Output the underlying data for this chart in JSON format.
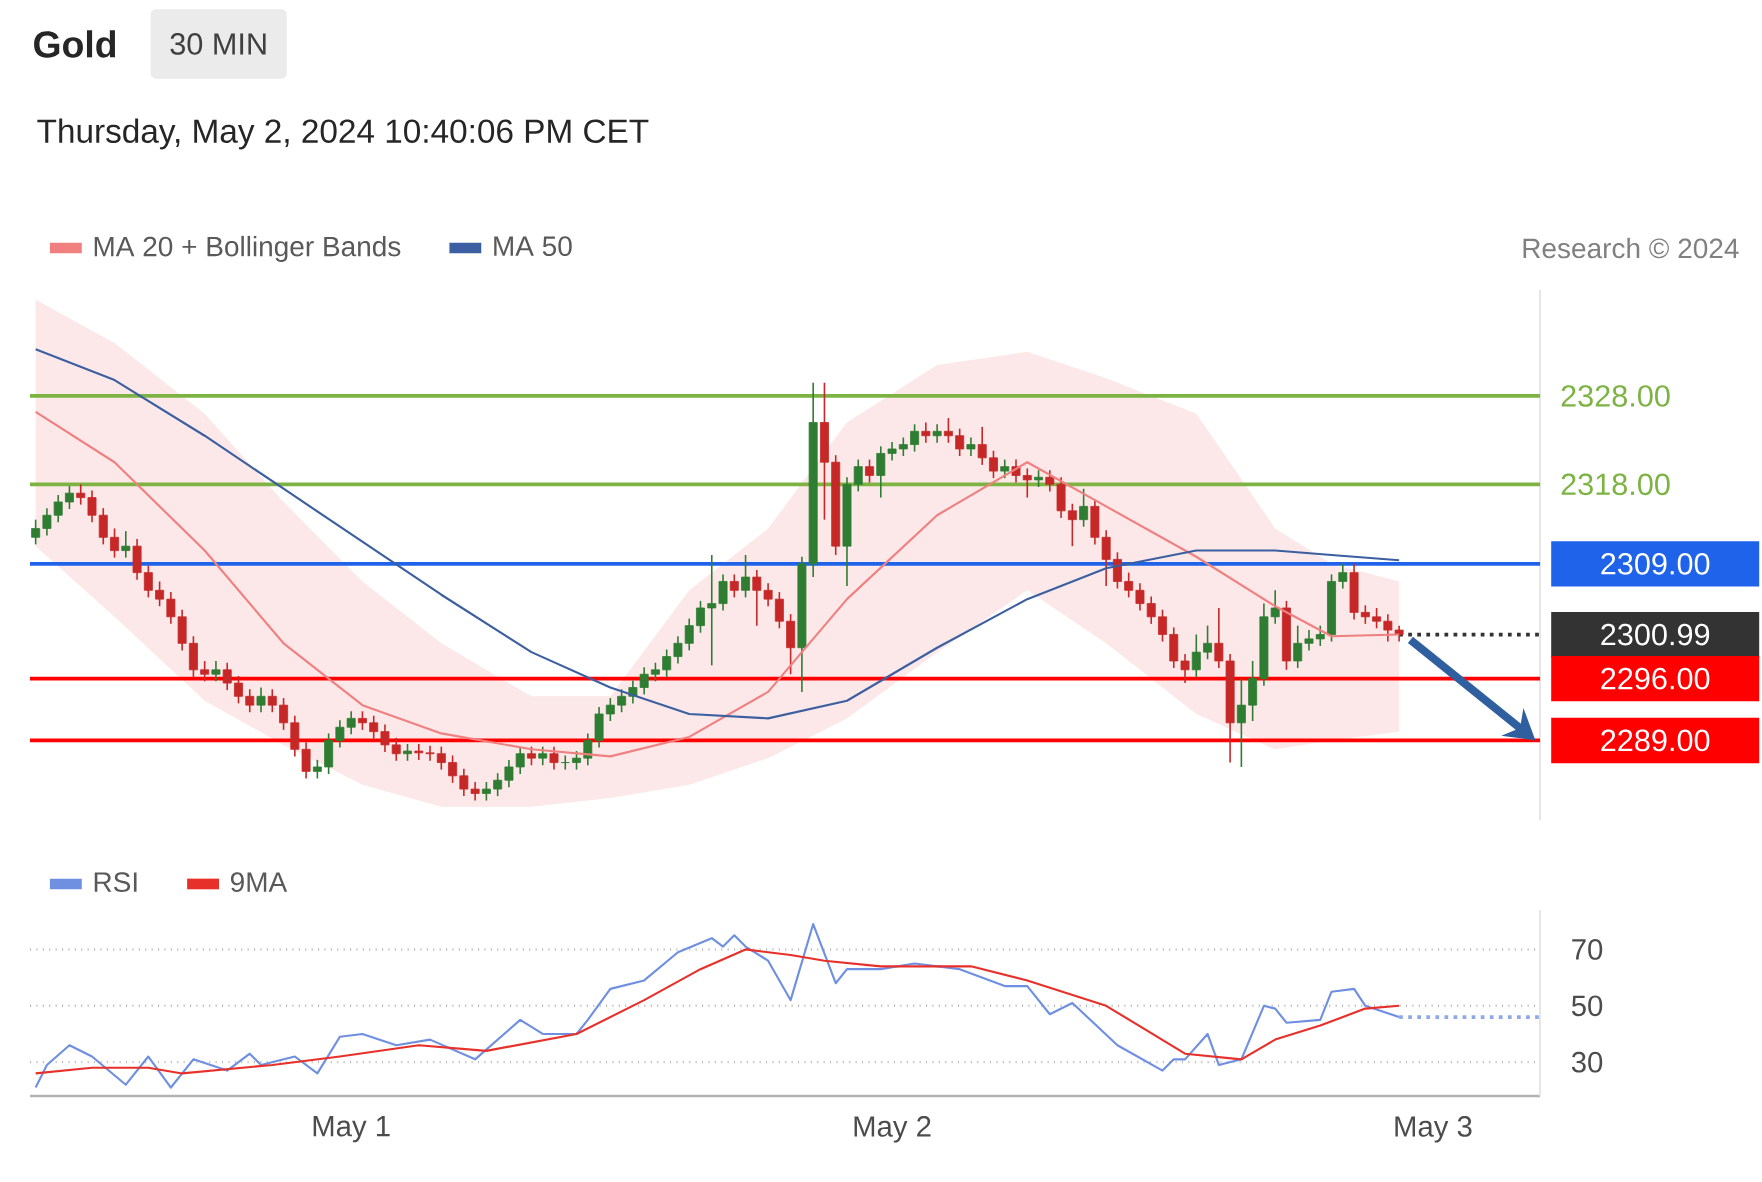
{
  "chart_data": [
    {
      "type": "candlestick",
      "title": "Gold",
      "subtitle": "30 MIN",
      "annotations": [
        "Thursday, May 2, 2024 10:40:06 PM CET",
        "Research © 2024"
      ],
      "legend": "top left",
      "xlim": [
        "2024-04-30T09:45",
        "2024-05-03T04:45"
      ],
      "ylim": [
        2280,
        2340
      ],
      "x": [
        "2024-04-30T10:00",
        "2024-04-30T10:30",
        "2024-04-30T11:00",
        "2024-04-30T11:30",
        "2024-04-30T12:00",
        "2024-04-30T12:30",
        "2024-04-30T13:00",
        "2024-04-30T13:30",
        "2024-04-30T14:00",
        "2024-04-30T14:30",
        "2024-04-30T15:00",
        "2024-04-30T15:30",
        "2024-04-30T16:00",
        "2024-04-30T16:30",
        "2024-04-30T17:00",
        "2024-04-30T17:30",
        "2024-04-30T18:00",
        "2024-04-30T18:30",
        "2024-04-30T19:00",
        "2024-04-30T19:30",
        "2024-04-30T20:00",
        "2024-04-30T20:30",
        "2024-04-30T21:00",
        "2024-04-30T21:30",
        "2024-04-30T22:00",
        "2024-04-30T22:30",
        "2024-04-30T23:00",
        "2024-04-30T23:30",
        "2024-05-01T00:00",
        "2024-05-01T00:30",
        "2024-05-01T01:00",
        "2024-05-01T01:30",
        "2024-05-01T02:00",
        "2024-05-01T02:30",
        "2024-05-01T03:00",
        "2024-05-01T03:30",
        "2024-05-01T04:00",
        "2024-05-01T04:30",
        "2024-05-01T05:00",
        "2024-05-01T05:30",
        "2024-05-01T06:00",
        "2024-05-01T06:30",
        "2024-05-01T07:00",
        "2024-05-01T07:30",
        "2024-05-01T08:00",
        "2024-05-01T08:30",
        "2024-05-01T09:00",
        "2024-05-01T09:30",
        "2024-05-01T10:00",
        "2024-05-01T10:30",
        "2024-05-01T11:00",
        "2024-05-01T11:30",
        "2024-05-01T12:00",
        "2024-05-01T12:30",
        "2024-05-01T13:00",
        "2024-05-01T13:30",
        "2024-05-01T14:00",
        "2024-05-01T14:30",
        "2024-05-01T15:00",
        "2024-05-01T15:30",
        "2024-05-01T16:00",
        "2024-05-01T16:30",
        "2024-05-01T17:00",
        "2024-05-01T17:30",
        "2024-05-01T18:00",
        "2024-05-01T18:30",
        "2024-05-01T19:00",
        "2024-05-01T19:30",
        "2024-05-01T20:00",
        "2024-05-01T20:30",
        "2024-05-01T21:00",
        "2024-05-01T21:30",
        "2024-05-01T22:00",
        "2024-05-01T22:30",
        "2024-05-01T23:00",
        "2024-05-01T23:30",
        "2024-05-02T00:00",
        "2024-05-02T00:30",
        "2024-05-02T01:00",
        "2024-05-02T01:30",
        "2024-05-02T02:00",
        "2024-05-02T02:30",
        "2024-05-02T03:00",
        "2024-05-02T03:30",
        "2024-05-02T04:00",
        "2024-05-02T04:30",
        "2024-05-02T05:00",
        "2024-05-02T05:30",
        "2024-05-02T06:00",
        "2024-05-02T06:30",
        "2024-05-02T07:00",
        "2024-05-02T07:30",
        "2024-05-02T08:00",
        "2024-05-02T08:30",
        "2024-05-02T09:00",
        "2024-05-02T09:30",
        "2024-05-02T10:00",
        "2024-05-02T10:30",
        "2024-05-02T11:00",
        "2024-05-02T11:30",
        "2024-05-02T12:00",
        "2024-05-02T12:30",
        "2024-05-02T13:00",
        "2024-05-02T13:30",
        "2024-05-02T14:00",
        "2024-05-02T14:30",
        "2024-05-02T15:00",
        "2024-05-02T15:30",
        "2024-05-02T16:00",
        "2024-05-02T16:30",
        "2024-05-02T17:00",
        "2024-05-02T17:30",
        "2024-05-02T18:00",
        "2024-05-02T18:30",
        "2024-05-02T19:00",
        "2024-05-02T19:30",
        "2024-05-02T20:00",
        "2024-05-02T20:30",
        "2024-05-02T21:00",
        "2024-05-02T21:30",
        "2024-05-02T22:00",
        "2024-05-02T22:30"
      ],
      "ohlc": [
        [
          2312,
          2314,
          2311.2,
          2313
        ],
        [
          2313,
          2315.3,
          2312.2,
          2314.5
        ],
        [
          2314.5,
          2316.8,
          2313.7,
          2316
        ],
        [
          2316,
          2317.8,
          2315.2,
          2317
        ],
        [
          2317,
          2318,
          2315.7,
          2316.5
        ],
        [
          2316.5,
          2317.3,
          2313.7,
          2314.5
        ],
        [
          2314.5,
          2315.3,
          2311.2,
          2312
        ],
        [
          2312,
          2313,
          2309.7,
          2310.5
        ],
        [
          2310.5,
          2312.7,
          2309.7,
          2311
        ],
        [
          2311,
          2311.8,
          2307.2,
          2308
        ],
        [
          2308,
          2308.8,
          2305.2,
          2306
        ],
        [
          2306,
          2307,
          2304.2,
          2305
        ],
        [
          2305,
          2305.8,
          2302.2,
          2303
        ],
        [
          2303,
          2303.8,
          2299.2,
          2300
        ],
        [
          2300,
          2300.8,
          2296.2,
          2297
        ],
        [
          2297,
          2298,
          2295.7,
          2296.5
        ],
        [
          2296.5,
          2298,
          2295.7,
          2297
        ],
        [
          2297,
          2297.8,
          2294.7,
          2295.5
        ],
        [
          2295.5,
          2296.3,
          2293.2,
          2294
        ],
        [
          2294,
          2294.8,
          2292.2,
          2293
        ],
        [
          2293,
          2295,
          2292.2,
          2294
        ],
        [
          2294,
          2294.8,
          2292.2,
          2293
        ],
        [
          2293,
          2293.8,
          2290.2,
          2291
        ],
        [
          2291,
          2291.8,
          2287.2,
          2288
        ],
        [
          2288,
          2288.8,
          2284.7,
          2285.5
        ],
        [
          2285.5,
          2286.8,
          2284.7,
          2286
        ],
        [
          2286,
          2289.8,
          2285.2,
          2289
        ],
        [
          2289,
          2291.3,
          2288.2,
          2290.5
        ],
        [
          2290.5,
          2292.3,
          2289.7,
          2291.5
        ],
        [
          2291.5,
          2292.3,
          2290.2,
          2291
        ],
        [
          2291,
          2291.8,
          2289.2,
          2290
        ],
        [
          2290,
          2290.8,
          2287.7,
          2288.5
        ],
        [
          2288.5,
          2289.3,
          2286.7,
          2287.5
        ],
        [
          2287.5,
          2288.6,
          2286.7,
          2287.8
        ],
        [
          2287.8,
          2288.6,
          2286.8,
          2287.6
        ],
        [
          2287.6,
          2288.4,
          2286.7,
          2287.5
        ],
        [
          2287.5,
          2288.3,
          2285.7,
          2286.5
        ],
        [
          2286.5,
          2287.3,
          2284.2,
          2285
        ],
        [
          2285,
          2285.8,
          2282.7,
          2283.5
        ],
        [
          2283.5,
          2284.3,
          2282.2,
          2283
        ],
        [
          2283,
          2284.3,
          2282.2,
          2283.5
        ],
        [
          2283.5,
          2285.3,
          2282.7,
          2284.5
        ],
        [
          2284.5,
          2286.8,
          2283.7,
          2286
        ],
        [
          2286,
          2288.3,
          2285.2,
          2287.5
        ],
        [
          2287.5,
          2288.3,
          2286.2,
          2287
        ],
        [
          2287,
          2288.3,
          2286.2,
          2287.5
        ],
        [
          2287.5,
          2288.3,
          2285.7,
          2286.5
        ],
        [
          2286.5,
          2287.3,
          2285.7,
          2286.5
        ],
        [
          2286.5,
          2287.8,
          2285.7,
          2287
        ],
        [
          2287,
          2289.8,
          2286.2,
          2289
        ],
        [
          2289,
          2292.8,
          2288.2,
          2292
        ],
        [
          2292,
          2293.8,
          2291.2,
          2293
        ],
        [
          2293,
          2294.8,
          2292.2,
          2294
        ],
        [
          2294,
          2295.8,
          2293.2,
          2295
        ],
        [
          2295,
          2297.3,
          2294.2,
          2296.5
        ],
        [
          2296.5,
          2297.8,
          2295.7,
          2297
        ],
        [
          2297,
          2299.3,
          2296.2,
          2298.5
        ],
        [
          2298.5,
          2300.8,
          2297.7,
          2300
        ],
        [
          2300,
          2302.8,
          2299.2,
          2302
        ],
        [
          2302,
          2304.8,
          2301.2,
          2304
        ],
        [
          2304,
          2310,
          2297.5,
          2304.5
        ],
        [
          2304.5,
          2307.8,
          2303.7,
          2307
        ],
        [
          2307,
          2307.8,
          2305.2,
          2306
        ],
        [
          2306,
          2310,
          2305.2,
          2307.5
        ],
        [
          2307.5,
          2308.3,
          2302,
          2306
        ],
        [
          2306,
          2306.8,
          2304.2,
          2305
        ],
        [
          2305,
          2305.8,
          2301.7,
          2302.5
        ],
        [
          2302.5,
          2303.3,
          2296.5,
          2299.5
        ],
        [
          2299.5,
          2309.8,
          2294.5,
          2309
        ],
        [
          2309,
          2329.5,
          2307.5,
          2325
        ],
        [
          2325,
          2329.5,
          2314,
          2320.5
        ],
        [
          2320.5,
          2321.3,
          2310,
          2311
        ],
        [
          2311,
          2318.8,
          2306.5,
          2318
        ],
        [
          2318,
          2320.8,
          2317.2,
          2320
        ],
        [
          2320,
          2320.8,
          2318.2,
          2319
        ],
        [
          2319,
          2322.3,
          2316.5,
          2321.5
        ],
        [
          2321.5,
          2322.8,
          2320.7,
          2322
        ],
        [
          2322,
          2323.3,
          2321.2,
          2322.5
        ],
        [
          2322.5,
          2324.8,
          2321.7,
          2324
        ],
        [
          2324,
          2325,
          2322.7,
          2323.5
        ],
        [
          2323.5,
          2324.8,
          2322.7,
          2324
        ],
        [
          2324,
          2325.5,
          2322.7,
          2323.5
        ],
        [
          2323.5,
          2324.3,
          2321.2,
          2322
        ],
        [
          2322,
          2323.3,
          2321.2,
          2322.5
        ],
        [
          2322.5,
          2324.5,
          2320.2,
          2321
        ],
        [
          2321,
          2321.8,
          2318.7,
          2319.5
        ],
        [
          2319.5,
          2320.8,
          2318.7,
          2320
        ],
        [
          2320,
          2320.8,
          2318.2,
          2319
        ],
        [
          2319,
          2319.8,
          2316.5,
          2318.5
        ],
        [
          2318.5,
          2319.6,
          2317.7,
          2318.8
        ],
        [
          2318.8,
          2319.6,
          2317.2,
          2318
        ],
        [
          2318,
          2318.8,
          2314.2,
          2315
        ],
        [
          2315,
          2315.8,
          2311,
          2314
        ],
        [
          2314,
          2317.5,
          2313.2,
          2315.5
        ],
        [
          2315.5,
          2316.3,
          2311.2,
          2312
        ],
        [
          2312,
          2312.8,
          2306.5,
          2309.5
        ],
        [
          2309.5,
          2310.3,
          2306.2,
          2307
        ],
        [
          2307,
          2308,
          2305.2,
          2306
        ],
        [
          2306,
          2306.8,
          2303.7,
          2304.5
        ],
        [
          2304.5,
          2305.3,
          2302.2,
          2303
        ],
        [
          2303,
          2303.8,
          2300.2,
          2301
        ],
        [
          2301,
          2301.8,
          2297.2,
          2298
        ],
        [
          2298,
          2298.8,
          2295.5,
          2297
        ],
        [
          2297,
          2301,
          2296.2,
          2299
        ],
        [
          2299,
          2302,
          2298.2,
          2300
        ],
        [
          2300,
          2304,
          2297.2,
          2298
        ],
        [
          2298,
          2298.8,
          2286.5,
          2291
        ],
        [
          2291,
          2296,
          2286,
          2293
        ],
        [
          2293,
          2298,
          2291.2,
          2296
        ],
        [
          2296,
          2304.5,
          2295.2,
          2303
        ],
        [
          2303,
          2306,
          2302.2,
          2304
        ],
        [
          2304,
          2304.8,
          2297,
          2298
        ],
        [
          2298,
          2302,
          2297.2,
          2300
        ],
        [
          2300,
          2301.5,
          2299.2,
          2300.5
        ],
        [
          2300.5,
          2302,
          2299.7,
          2301
        ],
        [
          2301,
          2307.8,
          2300.2,
          2307
        ],
        [
          2307,
          2309,
          2306.2,
          2308
        ],
        [
          2308,
          2309,
          2302.7,
          2303.5
        ],
        [
          2303.5,
          2304.3,
          2302.2,
          2303
        ],
        [
          2303,
          2304,
          2301.7,
          2302.5
        ],
        [
          2302.5,
          2303.3,
          2300.2,
          2301.5
        ],
        [
          2301.5,
          2302,
          2300.2,
          2300.99
        ]
      ],
      "series": [
        {
          "name": "MA 20 + Bollinger Bands",
          "type": "line",
          "color": "#f08080",
          "x": [
            "2024-04-30T10:00",
            "2024-04-30T13:30",
            "2024-04-30T17:30",
            "2024-04-30T21:00",
            "2024-05-01T00:30",
            "2024-05-01T04:00",
            "2024-05-01T08:00",
            "2024-05-01T11:30",
            "2024-05-01T15:00",
            "2024-05-01T18:30",
            "2024-05-01T22:00",
            "2024-05-02T02:00",
            "2024-05-02T06:00",
            "2024-05-02T09:30",
            "2024-05-02T13:30",
            "2024-05-02T17:00",
            "2024-05-02T19:30",
            "2024-05-02T22:30"
          ],
          "values": [
            2326.2,
            2320.5,
            2310.5,
            2300,
            2293,
            2289.8,
            2288,
            2287.2,
            2289.4,
            2294.5,
            2305,
            2314.5,
            2320.5,
            2315.5,
            2309.8,
            2304.2,
            2300.8,
            2301
          ],
          "lower": [
            2311,
            2303,
            2293.5,
            2288.5,
            2284,
            2281.5,
            2281.5,
            2282.5,
            2284,
            2287,
            2291.5,
            2299,
            2306,
            2300,
            2292,
            2288,
            2289,
            2290
          ],
          "upper": [
            2338.9,
            2334,
            2326,
            2316,
            2307,
            2300,
            2294,
            2294,
            2306,
            2313,
            2325,
            2331.5,
            2333,
            2330,
            2326,
            2313,
            2309,
            2307
          ]
        },
        {
          "name": "MA 50",
          "type": "line",
          "color": "#3b5fa0",
          "x": [
            "2024-04-30T10:00",
            "2024-04-30T13:30",
            "2024-04-30T17:30",
            "2024-04-30T21:00",
            "2024-05-01T00:30",
            "2024-05-01T04:00",
            "2024-05-01T08:00",
            "2024-05-01T11:30",
            "2024-05-01T15:00",
            "2024-05-01T18:30",
            "2024-05-01T22:00",
            "2024-05-02T02:00",
            "2024-05-02T06:00",
            "2024-05-02T09:30",
            "2024-05-02T13:30",
            "2024-05-02T17:00",
            "2024-05-02T19:30",
            "2024-05-02T22:30"
          ],
          "values": [
            2333.3,
            2329.8,
            2323.5,
            2317.5,
            2311.5,
            2305.5,
            2299,
            2295,
            2292,
            2291.5,
            2293.5,
            2299.5,
            2305,
            2308.5,
            2310.5,
            2310.5,
            2310,
            2309.4
          ]
        }
      ],
      "ref_lines": [
        {
          "axis": "y",
          "value": 2328,
          "label": "2328.00",
          "color": "#7cb342"
        },
        {
          "axis": "y",
          "value": 2318,
          "label": "2318.00",
          "color": "#7cb342"
        },
        {
          "axis": "y",
          "value": 2309,
          "label": "2309.00",
          "color": "#1e63e9"
        },
        {
          "axis": "y",
          "value": 2300.99,
          "label": "2300.99",
          "color": "#333333",
          "line_style": "dotted"
        },
        {
          "axis": "y",
          "value": 2296,
          "label": "2296.00",
          "color": "#ff0000"
        },
        {
          "axis": "y",
          "value": 2289,
          "label": "2289.00",
          "color": "#ff0000"
        }
      ]
    },
    {
      "type": "line",
      "legend": "top left",
      "grid": "y",
      "xlim": [
        "2024-04-30T09:45",
        "2024-05-03T04:45"
      ],
      "ylim": [
        18,
        84
      ],
      "yticks": [
        30,
        50,
        70
      ],
      "xticks": [
        {
          "value": "2024-05-01",
          "label": "May 1"
        },
        {
          "value": "2024-05-02",
          "label": "May 2"
        },
        {
          "value": "2024-05-03",
          "label": "May 3"
        }
      ],
      "series": [
        {
          "name": "RSI",
          "type": "line",
          "color": "#6f8fe0",
          "x": [
            "2024-04-30T10:00",
            "2024-04-30T10:30",
            "2024-04-30T11:30",
            "2024-04-30T12:30",
            "2024-04-30T14:00",
            "2024-04-30T15:00",
            "2024-04-30T16:00",
            "2024-04-30T17:00",
            "2024-04-30T18:30",
            "2024-04-30T19:30",
            "2024-04-30T20:00",
            "2024-04-30T21:30",
            "2024-04-30T22:30",
            "2024-04-30T23:30",
            "2024-05-01T00:30",
            "2024-05-01T02:00",
            "2024-05-01T03:30",
            "2024-05-01T05:30",
            "2024-05-01T07:30",
            "2024-05-01T08:30",
            "2024-05-01T10:00",
            "2024-05-01T10:30",
            "2024-05-01T11:30",
            "2024-05-01T13:00",
            "2024-05-01T14:30",
            "2024-05-01T16:00",
            "2024-05-01T16:30",
            "2024-05-01T17:00",
            "2024-05-01T17:30",
            "2024-05-01T18:30",
            "2024-05-01T19:30",
            "2024-05-01T20:30",
            "2024-05-01T21:30",
            "2024-05-01T22:00",
            "2024-05-01T23:30",
            "2024-05-02T01:00",
            "2024-05-02T03:00",
            "2024-05-02T05:00",
            "2024-05-02T06:00",
            "2024-05-02T07:00",
            "2024-05-02T08:00",
            "2024-05-02T10:00",
            "2024-05-02T12:00",
            "2024-05-02T12:30",
            "2024-05-02T13:00",
            "2024-05-02T14:00",
            "2024-05-02T14:30",
            "2024-05-02T15:30",
            "2024-05-02T16:30",
            "2024-05-02T17:00",
            "2024-05-02T17:30",
            "2024-05-02T19:00",
            "2024-05-02T19:30",
            "2024-05-02T20:30",
            "2024-05-02T21:00",
            "2024-05-02T22:30"
          ],
          "values": [
            21,
            29,
            36,
            32,
            22,
            32,
            21,
            31,
            27,
            33,
            29,
            32,
            26,
            39,
            40,
            36,
            38,
            31,
            45,
            40,
            40,
            45,
            56,
            59,
            69,
            74,
            71,
            75,
            71,
            66,
            52,
            79,
            58,
            63,
            63,
            65,
            63,
            57,
            57,
            47,
            51,
            36,
            27,
            31,
            31,
            40,
            29,
            31,
            50,
            49,
            44,
            45,
            55,
            56,
            50,
            46
          ]
        },
        {
          "name": "9MA",
          "type": "line",
          "color": "#e8302a",
          "x": [
            "2024-04-30T10:00",
            "2024-04-30T12:30",
            "2024-04-30T15:00",
            "2024-04-30T16:30",
            "2024-04-30T20:30",
            "2024-04-30T23:30",
            "2024-05-01T03:00",
            "2024-05-01T06:00",
            "2024-05-01T10:00",
            "2024-05-01T13:00",
            "2024-05-01T15:30",
            "2024-05-01T17:30",
            "2024-05-01T19:30",
            "2024-05-01T21:00",
            "2024-05-01T23:30",
            "2024-05-02T03:30",
            "2024-05-02T06:00",
            "2024-05-02T09:30",
            "2024-05-02T13:00",
            "2024-05-02T15:30",
            "2024-05-02T17:00",
            "2024-05-02T19:00",
            "2024-05-02T21:00",
            "2024-05-02T22:30"
          ],
          "values": [
            26,
            28,
            28,
            26,
            29,
            32,
            36,
            34,
            40,
            52,
            63,
            70,
            68,
            66,
            64,
            64,
            59,
            50,
            33,
            31,
            38,
            43,
            49,
            50
          ]
        }
      ],
      "ref_lines": [
        {
          "axis": "y",
          "value": 46,
          "color": "#8fa8e8",
          "line_style": "dotted"
        }
      ]
    }
  ]
}
